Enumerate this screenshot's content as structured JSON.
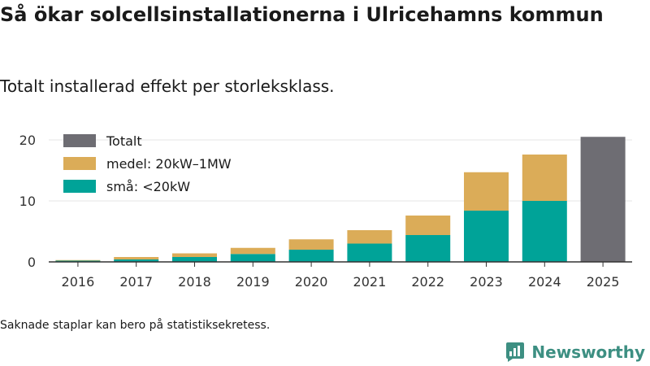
{
  "title": "Så ökar solcellsinstallationerna i Ulricehamns kommun",
  "subtitle": "Totalt installerad effekt per storleksklass.",
  "footnote": "Saknade staplar kan bero på statistiksekretess.",
  "brand": "Newsworthy",
  "colors": {
    "small": "#00a398",
    "medium": "#dbac58",
    "total": "#6e6d73",
    "grid": "#e6e6e6",
    "axis": "#333333",
    "brand": "#3d8f82"
  },
  "chart_data": {
    "type": "bar",
    "stacked": true,
    "categories": [
      "2016",
      "2017",
      "2018",
      "2019",
      "2020",
      "2021",
      "2022",
      "2023",
      "2024",
      "2025"
    ],
    "series": [
      {
        "key": "small",
        "name": "små: <20kW",
        "values": [
          0.2,
          0.4,
          0.8,
          1.3,
          2.0,
          3.0,
          4.4,
          8.4,
          10.0,
          null
        ]
      },
      {
        "key": "medium",
        "name": "medel: 20kW–1MW",
        "values": [
          0.1,
          0.4,
          0.6,
          1.0,
          1.7,
          2.2,
          3.2,
          6.3,
          7.6,
          null
        ]
      },
      {
        "key": "total",
        "name": "Totalt",
        "values": [
          null,
          null,
          null,
          null,
          null,
          null,
          null,
          null,
          null,
          20.5
        ]
      }
    ],
    "legend_order": [
      "total",
      "medium",
      "small"
    ],
    "yticks": [
      0,
      10,
      20
    ],
    "ylim": [
      0,
      22
    ],
    "xlabel": "",
    "ylabel": "",
    "grid": true,
    "legend_position": "top-left"
  }
}
